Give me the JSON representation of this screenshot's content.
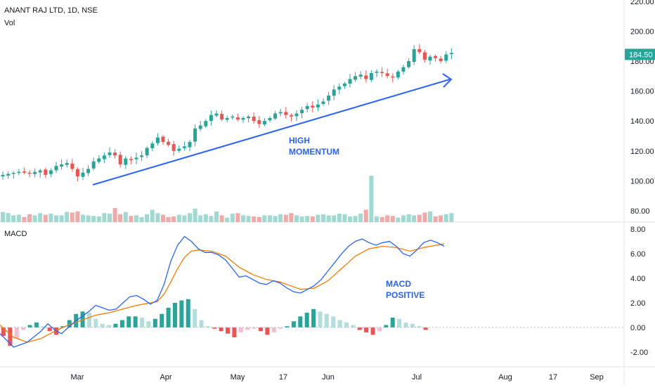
{
  "header": {
    "title": "ANANT RAJ LTD, 1D, NSE",
    "vol_label": "Vol",
    "macd_label": "MACD"
  },
  "annotations": {
    "high_momentum": "HIGH\nMOMENTUM",
    "macd_positive": "MACD\nPOSITIVE"
  },
  "price_tag": "184.50",
  "colors": {
    "up": "#26a69a",
    "down": "#ef5350",
    "vol_up": "#9fd9d2",
    "vol_down": "#f4a8a6",
    "macd": "#2962ff",
    "signal": "#f57c00",
    "hist_up_strong": "#26a69a",
    "hist_up_weak": "#b2dfdb",
    "hist_down_strong": "#ef5350",
    "hist_down_weak": "#f8bbd0",
    "arrow": "#2962ff",
    "tag": "#26a69a"
  },
  "chart_data": [
    {
      "type": "candlestick",
      "title": "ANANT RAJ LTD, 1D, NSE",
      "ylim": [
        78,
        222
      ],
      "y_ticks": [
        "80.00",
        "100.00",
        "120.00",
        "140.00",
        "160.00",
        "180.00",
        "200.00",
        "220.00"
      ],
      "x_ticks": [
        "Mar",
        "Apr",
        "May",
        "17",
        "Jun",
        "Jul",
        "Aug",
        "17",
        "Sep"
      ],
      "price_path": [
        [
          0,
          104
        ],
        [
          3,
          106
        ],
        [
          5,
          105
        ],
        [
          7,
          107
        ],
        [
          8,
          104
        ],
        [
          10,
          110
        ],
        [
          12,
          112
        ],
        [
          13,
          108
        ],
        [
          14,
          103
        ],
        [
          16,
          108
        ],
        [
          17,
          113
        ],
        [
          19,
          117
        ],
        [
          20,
          119
        ],
        [
          21,
          117
        ],
        [
          22,
          111
        ],
        [
          23,
          115
        ],
        [
          24,
          114
        ],
        [
          26,
          117
        ],
        [
          27,
          122
        ],
        [
          28,
          125
        ],
        [
          29,
          129
        ],
        [
          30,
          126
        ],
        [
          31,
          124
        ],
        [
          32,
          120
        ],
        [
          34,
          123
        ],
        [
          35,
          126
        ],
        [
          36,
          135
        ],
        [
          37,
          137
        ],
        [
          38,
          140
        ],
        [
          39,
          144
        ],
        [
          40,
          145
        ],
        [
          41,
          141
        ],
        [
          43,
          143
        ],
        [
          44,
          141
        ],
        [
          46,
          143
        ],
        [
          47,
          140
        ],
        [
          48,
          138
        ],
        [
          49,
          140
        ],
        [
          50,
          142
        ],
        [
          51,
          145
        ],
        [
          52,
          146
        ],
        [
          53,
          144
        ],
        [
          54,
          143
        ],
        [
          55,
          145
        ],
        [
          57,
          150
        ],
        [
          58,
          149
        ],
        [
          60,
          153
        ],
        [
          61,
          157
        ],
        [
          62,
          161
        ],
        [
          63,
          163
        ],
        [
          64,
          165
        ],
        [
          65,
          168
        ],
        [
          66,
          170
        ],
        [
          67,
          171
        ],
        [
          68,
          168
        ],
        [
          69,
          172
        ],
        [
          70,
          173
        ],
        [
          71,
          172
        ],
        [
          72,
          170
        ],
        [
          73,
          169
        ],
        [
          74,
          173
        ],
        [
          75,
          176
        ],
        [
          76,
          180
        ],
        [
          77,
          188
        ],
        [
          78,
          186
        ],
        [
          79,
          181
        ],
        [
          80,
          183
        ],
        [
          81,
          182
        ],
        [
          82,
          180
        ],
        [
          83,
          184.5
        ]
      ],
      "current_price": 184.5,
      "trend_arrow": {
        "from": [
          20,
          100
        ],
        "to": [
          86,
          170
        ]
      },
      "volume_ylim": [
        0,
        9
      ],
      "volume": [
        1.8,
        1.6,
        1.2,
        1.3,
        0.9,
        1.4,
        1.2,
        1.6,
        1.3,
        1.5,
        1.2,
        1.2,
        1.8,
        1.7,
        1.9,
        1.3,
        1.2,
        1.1,
        1.0,
        1.6,
        1.5,
        2.5,
        1.4,
        1.8,
        1.1,
        1.2,
        0.9,
        1.4,
        2.2,
        1.6,
        1.3,
        0.9,
        1.0,
        1.3,
        1.2,
        1.6,
        2.4,
        1.2,
        1.4,
        1.1,
        1.9,
        1.2,
        0.8,
        1.5,
        1.6,
        1.2,
        1.1,
        1.0,
        0.9,
        1.2,
        1.2,
        1.1,
        1.4,
        1.3,
        1.6,
        1.2,
        1.0,
        1.1,
        1.0,
        1.3,
        1.4,
        1.2,
        1.2,
        1.5,
        1.4,
        1.0,
        1.1,
        1.5,
        2.2,
        8.3,
        1.0,
        0.9,
        1.2,
        1.1,
        0.8,
        1.2,
        1.4,
        1.2,
        1.3,
        1.7,
        1.9,
        1.0,
        1.2,
        1.4,
        1.6
      ]
    },
    {
      "type": "line",
      "title": "MACD",
      "ylim": [
        -3.6,
        8.6
      ],
      "y_ticks": [
        "-2.00",
        "0.00",
        "2.00",
        "4.00",
        "6.00",
        "8.00"
      ],
      "series": [
        {
          "values_path": [
            [
              0,
              -0.5
            ],
            [
              2,
              -1.6
            ],
            [
              4,
              -1.2
            ],
            [
              6,
              -0.3
            ],
            [
              7,
              0.3
            ],
            [
              8,
              -0.2
            ],
            [
              9,
              -0.5
            ],
            [
              11,
              0.5
            ],
            [
              13,
              1.3
            ],
            [
              14,
              1.8
            ],
            [
              15,
              1.6
            ],
            [
              16,
              1.4
            ],
            [
              17,
              1.5
            ],
            [
              18,
              2.0
            ],
            [
              19,
              2.5
            ],
            [
              20,
              2.6
            ],
            [
              21,
              2.3
            ],
            [
              22,
              1.9
            ],
            [
              23,
              2.2
            ],
            [
              24,
              3.5
            ],
            [
              25,
              5.4
            ],
            [
              26,
              6.7
            ],
            [
              27,
              7.4
            ],
            [
              28,
              7.0
            ],
            [
              29,
              6.4
            ],
            [
              30,
              6.1
            ],
            [
              31,
              6.1
            ],
            [
              32,
              5.9
            ],
            [
              33,
              5.5
            ],
            [
              34,
              4.8
            ],
            [
              35,
              4.1
            ],
            [
              36,
              4.2
            ],
            [
              37,
              3.9
            ],
            [
              38,
              3.6
            ],
            [
              39,
              3.5
            ],
            [
              40,
              3.8
            ],
            [
              41,
              3.6
            ],
            [
              42,
              3.2
            ],
            [
              43,
              2.9
            ],
            [
              44,
              2.8
            ],
            [
              45,
              3.1
            ],
            [
              46,
              3.4
            ],
            [
              47,
              3.9
            ],
            [
              48,
              4.6
            ],
            [
              49,
              5.3
            ],
            [
              50,
              6.0
            ],
            [
              51,
              6.6
            ],
            [
              52,
              7.0
            ],
            [
              53,
              7.2
            ],
            [
              54,
              6.9
            ],
            [
              55,
              6.7
            ],
            [
              56,
              6.9
            ],
            [
              57,
              7.0
            ],
            [
              58,
              6.6
            ],
            [
              59,
              6.0
            ],
            [
              60,
              5.8
            ],
            [
              61,
              6.3
            ],
            [
              62,
              6.9
            ],
            [
              63,
              7.1
            ],
            [
              64,
              6.9
            ],
            [
              65,
              6.6
            ]
          ]
        },
        {
          "values_path": [
            [
              0,
              0.2
            ],
            [
              2,
              -0.8
            ],
            [
              4,
              -1.2
            ],
            [
              6,
              -0.9
            ],
            [
              8,
              -0.3
            ],
            [
              10,
              0.2
            ],
            [
              12,
              0.6
            ],
            [
              14,
              1.0
            ],
            [
              16,
              1.2
            ],
            [
              18,
              1.5
            ],
            [
              20,
              1.8
            ],
            [
              22,
              2.0
            ],
            [
              23,
              2.1
            ],
            [
              24,
              2.7
            ],
            [
              25,
              3.7
            ],
            [
              26,
              4.8
            ],
            [
              27,
              5.7
            ],
            [
              28,
              6.2
            ],
            [
              29,
              6.3
            ],
            [
              31,
              6.2
            ],
            [
              33,
              5.8
            ],
            [
              35,
              4.9
            ],
            [
              37,
              4.3
            ],
            [
              39,
              3.9
            ],
            [
              41,
              3.7
            ],
            [
              43,
              3.3
            ],
            [
              44,
              3.1
            ],
            [
              46,
              3.2
            ],
            [
              48,
              3.8
            ],
            [
              50,
              4.8
            ],
            [
              52,
              5.8
            ],
            [
              54,
              6.4
            ],
            [
              56,
              6.6
            ],
            [
              58,
              6.5
            ],
            [
              60,
              6.2
            ],
            [
              62,
              6.5
            ],
            [
              64,
              6.7
            ],
            [
              65,
              6.8
            ]
          ]
        }
      ],
      "histogram": [
        -0.7,
        -1.5,
        -0.9,
        -0.2,
        0.2,
        0.4,
        0.1,
        -0.3,
        -0.6,
        0.1,
        0.6,
        1.1,
        1.3,
        1.2,
        0.7,
        0.3,
        0.2,
        0.3,
        0.6,
        0.9,
        0.9,
        0.8,
        0.5,
        0.7,
        1.1,
        1.6,
        2.0,
        2.2,
        2.3,
        1.5,
        0.6,
        0.1,
        -0.1,
        -0.3,
        -0.5,
        -0.8,
        -0.4,
        -0.2,
        -0.1,
        -0.3,
        -0.6,
        -0.4,
        -0.1,
        0.1,
        0.5,
        0.9,
        1.2,
        1.5,
        1.3,
        1.1,
        0.9,
        0.6,
        0.4,
        0.2,
        -0.2,
        -0.4,
        -0.6,
        -0.3,
        0.2,
        0.8,
        0.7,
        0.4,
        0.3,
        0.1,
        -0.2
      ]
    }
  ]
}
